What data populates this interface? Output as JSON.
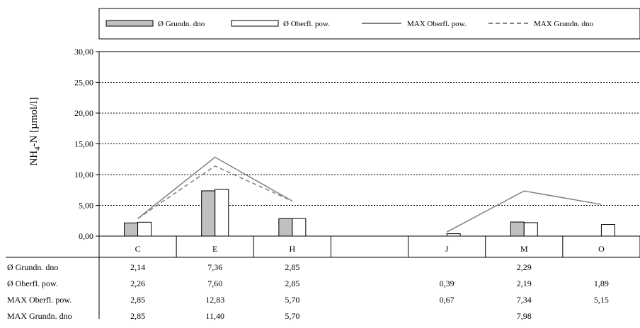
{
  "chart_data": {
    "type": "bar",
    "categories": [
      "C",
      "E",
      "H",
      "",
      "J",
      "M",
      "O"
    ],
    "ylabel": "NH4-N [µmol/l]",
    "ylabel_main": "NH",
    "ylabel_sub": "4",
    "ylabel_rest": "-N [µmol/l]",
    "ylim": [
      0,
      30
    ],
    "yticks": [
      "0,00",
      "5,00",
      "10,00",
      "15,00",
      "20,00",
      "25,00",
      "30,00"
    ],
    "grid": true,
    "legend_position": "top",
    "series": [
      {
        "name": "Ø Grundn. dno",
        "kind": "bar",
        "color": "#c0c0c0",
        "values": [
          2.14,
          7.36,
          2.85,
          null,
          null,
          2.29,
          null
        ],
        "labels": [
          "2,14",
          "7,36",
          "2,85",
          "",
          "",
          "2,29",
          ""
        ]
      },
      {
        "name": "Ø Oberfl. pow.",
        "kind": "bar",
        "color": "#ffffff",
        "values": [
          2.26,
          7.6,
          2.85,
          null,
          0.39,
          2.19,
          1.89
        ],
        "labels": [
          "2,26",
          "7,60",
          "2,85",
          "",
          "0,39",
          "2,19",
          "1,89"
        ]
      },
      {
        "name": "MAX Oberfl. pow.",
        "kind": "line",
        "dash": "solid",
        "color": "#808080",
        "values": [
          2.85,
          12.83,
          5.7,
          null,
          0.67,
          7.34,
          5.15
        ],
        "labels": [
          "2,85",
          "12,83",
          "5,70",
          "",
          "0,67",
          "7,34",
          "5,15"
        ]
      },
      {
        "name": "MAX Grundn. dno",
        "kind": "line",
        "dash": "dashed",
        "color": "#808080",
        "values": [
          2.85,
          11.4,
          5.7,
          null,
          null,
          7.98,
          null
        ],
        "labels": [
          "2,85",
          "11,40",
          "5,70",
          "",
          "",
          "7,98",
          ""
        ]
      }
    ]
  }
}
